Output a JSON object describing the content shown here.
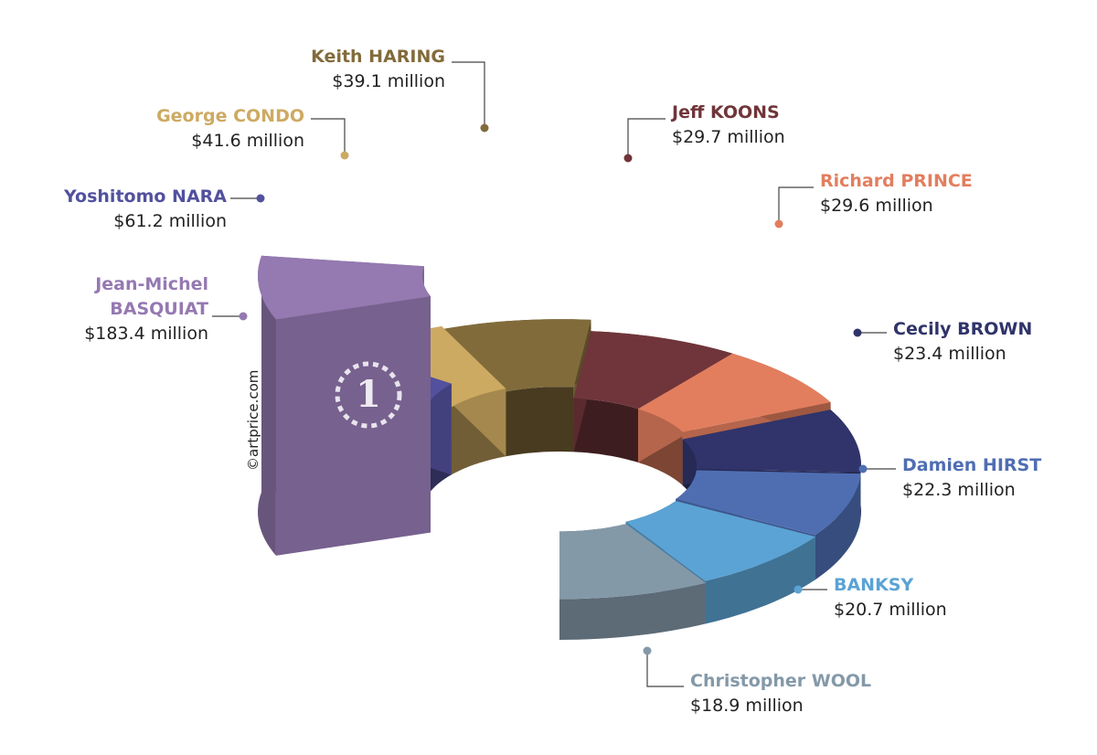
{
  "chart_data": {
    "type": "donut3d",
    "categories": [
      "Jean-Michel BASQUIAT",
      "Yoshitomo NARA",
      "George CONDO",
      "Keith HARING",
      "Jeff KOONS",
      "Richard PRINCE",
      "Cecily BROWN",
      "Damien HIRST",
      "BANKSY",
      "Christopher WOOL"
    ],
    "values": [
      183.4,
      61.2,
      41.6,
      39.1,
      29.7,
      29.6,
      23.4,
      22.3,
      20.7,
      18.9
    ],
    "value_labels": [
      "$183.4 million",
      "$61.2 million",
      "$41.6 million",
      "$39.1 million",
      "$29.7 million",
      "$29.6 million",
      "$23.4 million",
      "$22.3 million",
      "$20.7 million",
      "$18.9 million"
    ],
    "colors": [
      "#9579b1",
      "#52519e",
      "#cdaa62",
      "#826b3b",
      "#70353a",
      "#e27e5e",
      "#30346a",
      "#4f6eb2",
      "#5ba3d4",
      "#8499a8"
    ],
    "badge": "1",
    "credit": "©artprice.com"
  }
}
